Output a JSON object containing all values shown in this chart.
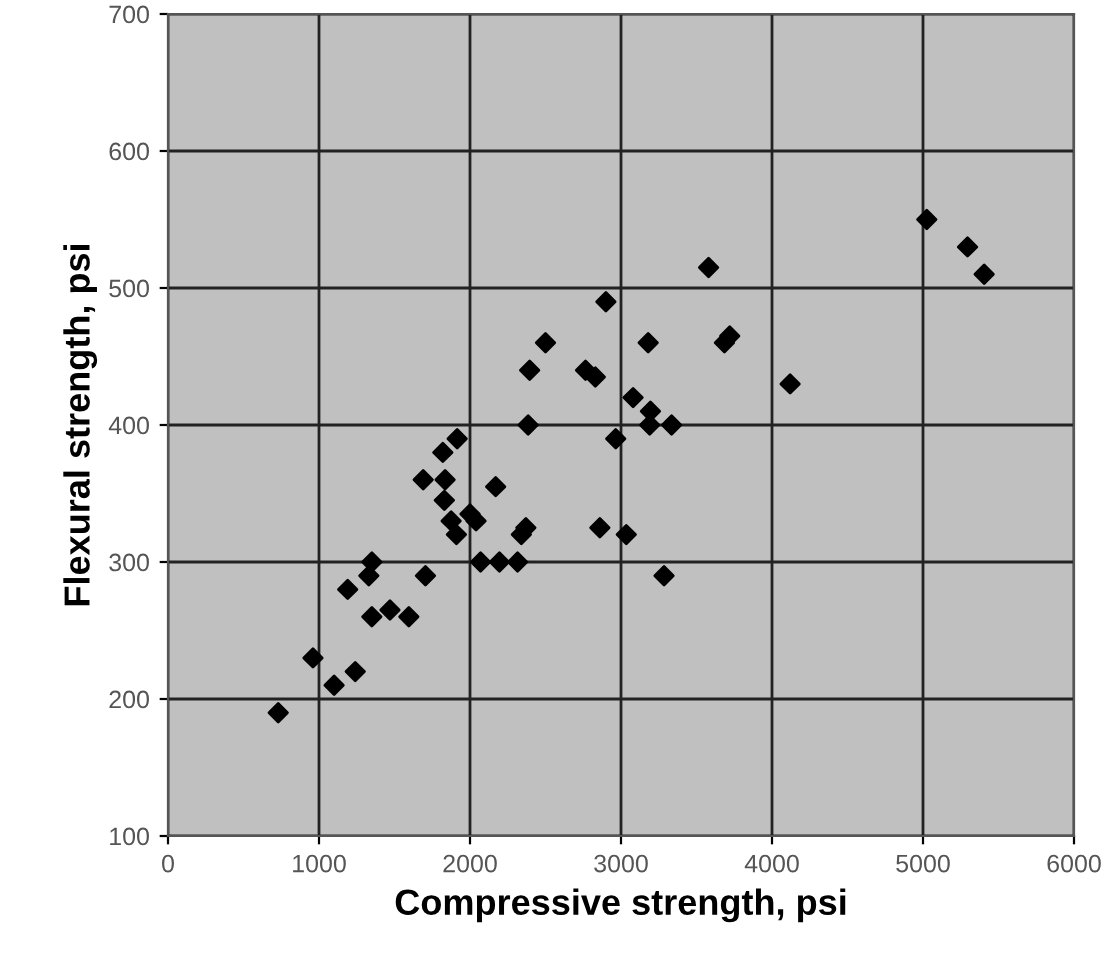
{
  "chart_data": {
    "type": "scatter",
    "xlabel": "Compressive strength, psi",
    "ylabel": "Flexural strength, psi",
    "xlim": [
      0,
      6000
    ],
    "ylim": [
      100,
      700
    ],
    "xticks": [
      0,
      1000,
      2000,
      3000,
      4000,
      5000,
      6000
    ],
    "yticks": [
      100,
      200,
      300,
      400,
      500,
      600,
      700
    ],
    "grid": true,
    "marker": "diamond",
    "series": [
      {
        "color": "#000000",
        "x": [
          730,
          960,
          1100,
          1240,
          1190,
          1330,
          1350,
          1350,
          1470,
          1595,
          1705,
          1690,
          1820,
          1835,
          1830,
          1875,
          1910,
          1915,
          2000,
          2040,
          2070,
          2170,
          2195,
          2315,
          2340,
          2370,
          2385,
          2395,
          2500,
          2765,
          2830,
          2860,
          2900,
          2965,
          3035,
          3080,
          3180,
          3195,
          3190,
          3335,
          3285,
          3580,
          3685,
          3720,
          4120,
          5025,
          5295,
          5405
        ],
        "values": [
          190,
          230,
          210,
          220,
          280,
          290,
          300,
          260,
          265,
          260,
          290,
          360,
          380,
          360,
          345,
          330,
          320,
          390,
          335,
          330,
          300,
          355,
          300,
          300,
          320,
          325,
          400,
          440,
          460,
          440,
          435,
          325,
          490,
          390,
          320,
          420,
          460,
          410,
          400,
          400,
          290,
          515,
          460,
          465,
          430,
          550,
          530,
          510
        ]
      }
    ]
  }
}
